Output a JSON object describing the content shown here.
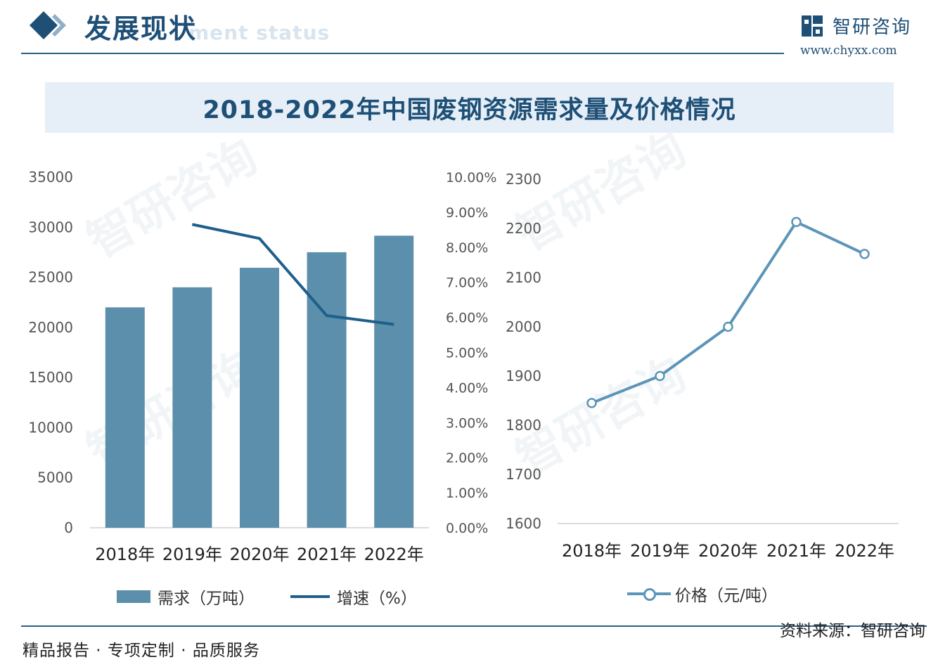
{
  "header": {
    "title": "发展现状",
    "subtitle": "ment status"
  },
  "logo": {
    "name": "智研咨询",
    "url": "www.chyxx.com"
  },
  "chart_title": "2018-2022年中国废钢资源需求量及价格情况",
  "chart_data": [
    {
      "type": "bar",
      "categories": [
        "2018年",
        "2019年",
        "2020年",
        "2021年",
        "2022年"
      ],
      "series": [
        {
          "name": "需求（万吨）",
          "type": "bar",
          "axis": "left",
          "values": [
            22000,
            24000,
            25950,
            27500,
            29150
          ]
        },
        {
          "name": "增速（%）",
          "type": "line",
          "axis": "right",
          "values": [
            null,
            8.65,
            8.25,
            6.05,
            5.8
          ]
        }
      ],
      "left_axis": {
        "ylim": [
          0,
          35000
        ],
        "ticks": [
          "0",
          "5000",
          "10000",
          "15000",
          "20000",
          "25000",
          "30000",
          "35000"
        ]
      },
      "right_axis": {
        "ylim": [
          0,
          10
        ],
        "ticks": [
          "0.00%",
          "1.00%",
          "2.00%",
          "3.00%",
          "4.00%",
          "5.00%",
          "6.00%",
          "7.00%",
          "8.00%",
          "9.00%",
          "10.00%"
        ]
      },
      "legend": {
        "bar_label": "需求（万吨）",
        "line_label": "增速（%）"
      }
    },
    {
      "type": "line",
      "categories": [
        "2018年",
        "2019年",
        "2020年",
        "2021年",
        "2022年"
      ],
      "series": [
        {
          "name": "价格（元/吨）",
          "values": [
            1845,
            1900,
            2000,
            2213,
            2148
          ]
        }
      ],
      "ylim": [
        1600,
        2300
      ],
      "ticks": [
        "1600",
        "1700",
        "1800",
        "1900",
        "2000",
        "2100",
        "2200",
        "2300"
      ],
      "legend": {
        "label": "价格（元/吨）"
      }
    }
  ],
  "footer": {
    "left": "精品报告 · 专项定制 · 品质服务",
    "source": "资料来源：智研咨询"
  },
  "colors": {
    "bar": "#5b8fac",
    "growth_line": "#1e5f8c",
    "price_line": "#5b95b8",
    "brand": "#1e4f76"
  }
}
